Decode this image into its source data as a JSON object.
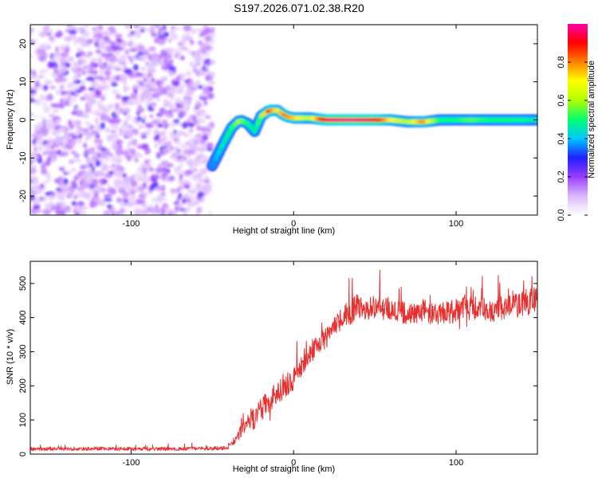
{
  "title": "S197.2026.071.02.38.R20",
  "chart_data": [
    {
      "type": "heatmap",
      "name": "spectrogram",
      "xlabel": "Height of straight line (km)",
      "ylabel": "Frequency (Hz)",
      "xlim": [
        -162,
        150
      ],
      "ylim": [
        -25,
        25
      ],
      "xticks": [
        -100,
        0,
        100
      ],
      "xtick_labels": [
        "-100",
        "0",
        "100"
      ],
      "yticks": [
        -20,
        -10,
        0,
        10,
        20
      ],
      "ytick_labels": [
        "-20",
        "-10",
        "0",
        "10",
        "20"
      ],
      "noise_region_km": [
        -162,
        -50
      ],
      "noise_amplitude": 0.1,
      "ridge": {
        "x": [
          -50,
          -43,
          -38,
          -33,
          -28,
          -24,
          -20,
          -15,
          -10,
          -5,
          0,
          10,
          20,
          30,
          40,
          50,
          60,
          70,
          80,
          90,
          100,
          110,
          120,
          130,
          140,
          150
        ],
        "y": [
          -12,
          -6,
          -2,
          0,
          -1,
          -3,
          1,
          2.5,
          2.5,
          1,
          0.5,
          0.5,
          0,
          0,
          0,
          0,
          0,
          -0.5,
          -0.5,
          0,
          0,
          0,
          0,
          0,
          0,
          0
        ],
        "amplitude": [
          0.35,
          0.45,
          0.5,
          0.6,
          0.5,
          0.45,
          0.55,
          0.85,
          0.7,
          0.8,
          0.75,
          0.6,
          0.95,
          0.98,
          0.98,
          0.95,
          0.7,
          0.6,
          0.8,
          0.5,
          0.5,
          0.55,
          0.5,
          0.5,
          0.5,
          0.45
        ]
      },
      "colorbar": {
        "label": "Normalized spectral amplitude",
        "range": [
          0,
          1
        ],
        "ticks": [
          0.0,
          0.2,
          0.4,
          0.6,
          0.8
        ],
        "tick_labels": [
          "0.0",
          "0.2",
          "0.4",
          "0.6",
          "0.8"
        ],
        "colors": [
          "#ffffff",
          "#dcb8ff",
          "#9a3cff",
          "#2020ff",
          "#00c8ff",
          "#00ff70",
          "#b0ff00",
          "#ffff00",
          "#ff8000",
          "#ff0000",
          "#ff00aa"
        ]
      }
    },
    {
      "type": "line",
      "name": "snr",
      "xlabel": "Height of straight line (km)",
      "ylabel": "SNR (10 * v/v)",
      "xlim": [
        -162,
        150
      ],
      "ylim": [
        0,
        565
      ],
      "xticks": [
        -100,
        0,
        100
      ],
      "xtick_labels": [
        "-100",
        "0",
        "100"
      ],
      "yticks": [
        0,
        100,
        200,
        300,
        400,
        500
      ],
      "ytick_labels": [
        "0",
        "100",
        "200",
        "300",
        "400",
        "500"
      ],
      "series": [
        {
          "name": "SNR",
          "color": "#e83030",
          "x": [
            -162,
            -140,
            -120,
            -100,
            -80,
            -60,
            -40,
            -35,
            -30,
            -25,
            -20,
            -15,
            -10,
            -5,
            0,
            5,
            10,
            15,
            20,
            25,
            30,
            35,
            40,
            50,
            60,
            70,
            80,
            90,
            100,
            110,
            120,
            130,
            140,
            150
          ],
          "y": [
            15,
            15,
            16,
            15,
            15,
            16,
            18,
            40,
            90,
            100,
            130,
            160,
            180,
            200,
            220,
            260,
            290,
            320,
            340,
            370,
            400,
            420,
            430,
            430,
            425,
            410,
            420,
            410,
            420,
            430,
            420,
            430,
            440,
            450
          ],
          "noise": [
            10,
            10,
            10,
            10,
            10,
            10,
            12,
            30,
            50,
            60,
            70,
            70,
            70,
            70,
            70,
            60,
            60,
            60,
            60,
            60,
            70,
            80,
            80,
            70,
            70,
            70,
            70,
            70,
            70,
            70,
            70,
            70,
            80,
            80
          ]
        }
      ]
    }
  ]
}
